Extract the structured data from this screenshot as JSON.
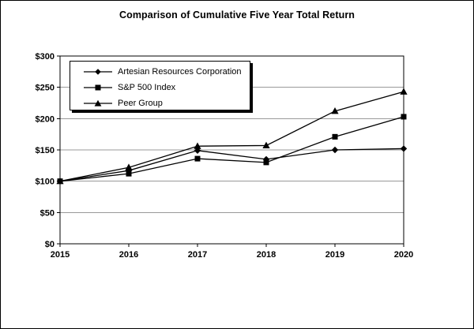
{
  "figure": {
    "background_color": "#ffffff",
    "border_color": "#000000"
  },
  "chart_data": {
    "type": "line",
    "title": "Comparison of Cumulative Five Year Total Return",
    "x": [
      2015,
      2016,
      2017,
      2018,
      2019,
      2020
    ],
    "x_tick_labels": [
      "2015",
      "2016",
      "2017",
      "2018",
      "2019",
      "2020"
    ],
    "y_tick_values": [
      0,
      50,
      100,
      150,
      200,
      250,
      300
    ],
    "y_tick_labels": [
      "$0",
      "$50",
      "$100",
      "$150",
      "$200",
      "$250",
      "$300"
    ],
    "ylim": [
      0,
      300
    ],
    "grid": "horizontal-only",
    "legend_position": "top-left-inside",
    "series": [
      {
        "name": "Artesian Resources Corporation",
        "marker": "diamond",
        "values": [
          100,
          117,
          149,
          135,
          150,
          152
        ]
      },
      {
        "name": "S&P 500 Index",
        "marker": "square",
        "values": [
          100,
          112,
          136,
          130,
          171,
          203
        ]
      },
      {
        "name": "Peer Group",
        "marker": "triangle",
        "values": [
          100,
          122,
          156,
          157,
          212,
          243
        ]
      }
    ],
    "colors": {
      "line": "#000000",
      "marker": "#000000",
      "grid": "#999999",
      "frame": "#000000",
      "background": "#ffffff"
    }
  }
}
